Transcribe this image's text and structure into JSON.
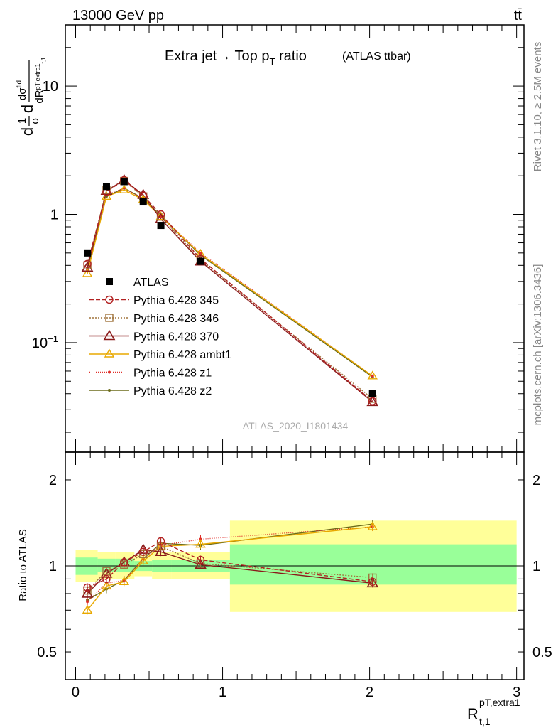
{
  "header": {
    "left": "13000 GeV pp",
    "right": "tt̄"
  },
  "side_labels": {
    "rivet": "Rivet 3.1.10, ≥ 2.5M events",
    "mcplots": "mcplots.cern.ch [arXiv:1306.3436]"
  },
  "chart_data": [
    {
      "type": "line",
      "title_main": "Extra jet→ Top p",
      "title_sub": "T",
      "title_tail": " ratio",
      "title_note": "(ATLAS ttbar)",
      "watermark": "ATLAS_2020_I1801434",
      "ylabel": "d(1/σ)dσ/dR",
      "yscale": "log",
      "ylim": [
        0.014,
        30
      ],
      "xlim": [
        -0.07,
        3.05
      ],
      "yticks": [
        {
          "v": 10,
          "label": "10"
        },
        {
          "v": 1,
          "label": "1"
        },
        {
          "v": 0.1,
          "label": "10",
          "sup": "−1"
        }
      ],
      "x": [
        0.08,
        0.21,
        0.33,
        0.46,
        0.58,
        0.85,
        2.02
      ],
      "series": [
        {
          "name": "ATLAS",
          "color": "#000000",
          "dash": "",
          "marker": "square",
          "values": [
            0.5,
            1.65,
            1.8,
            1.25,
            0.82,
            0.43,
            0.04
          ]
        },
        {
          "name": "Pythia 6.428 345",
          "color": "#b22222",
          "dash": "6,3",
          "marker": "circle",
          "values": [
            0.41,
            1.5,
            1.85,
            1.4,
            1.0,
            0.45,
            0.035
          ]
        },
        {
          "name": "Pythia 6.428 346",
          "color": "#a0733c",
          "dash": "2,2",
          "marker": "opensquare",
          "values": [
            0.4,
            1.55,
            1.82,
            1.38,
            0.96,
            0.44,
            0.0365
          ]
        },
        {
          "name": "Pythia 6.428 370",
          "color": "#8b1a1a",
          "dash": "",
          "marker": "triangle",
          "values": [
            0.385,
            1.53,
            1.85,
            1.42,
            0.92,
            0.43,
            0.0345
          ]
        },
        {
          "name": "Pythia 6.428 ambt1",
          "color": "#e8a800",
          "dash": "",
          "marker": "opentriangle",
          "values": [
            0.345,
            1.38,
            1.55,
            1.3,
            0.96,
            0.49,
            0.055
          ]
        },
        {
          "name": "Pythia 6.428 z1",
          "color": "#e0302a",
          "dash": "1,2",
          "marker": "dot",
          "values": [
            0.37,
            1.42,
            1.6,
            1.32,
            0.97,
            0.5,
            0.055
          ]
        },
        {
          "name": "Pythia 6.428 z2",
          "color": "#6b6b1a",
          "dash": "",
          "marker": "dot",
          "values": [
            0.375,
            1.38,
            1.6,
            1.33,
            0.98,
            0.48,
            0.054
          ]
        }
      ]
    },
    {
      "type": "line",
      "ylabel": "Ratio to ATLAS",
      "yscale": "log",
      "ylim": [
        0.4,
        2.5
      ],
      "xlim": [
        -0.07,
        3.05
      ],
      "yticks": [
        {
          "v": 2,
          "label": "2"
        },
        {
          "v": 1,
          "label": "1"
        },
        {
          "v": 0.5,
          "label": "0.5"
        }
      ],
      "xticks": [
        {
          "v": 0,
          "label": "0"
        },
        {
          "v": 1,
          "label": "1"
        },
        {
          "v": 2,
          "label": "2"
        },
        {
          "v": 3,
          "label": "3"
        }
      ],
      "xlabel": "R",
      "xlabel_sup": "pT,extra1",
      "xlabel_sub": "t,1",
      "bands": [
        {
          "x0": 0.0,
          "x1": 0.15,
          "yellow": [
            0.88,
            1.14
          ],
          "green": [
            0.93,
            1.07
          ]
        },
        {
          "x0": 0.15,
          "x1": 0.27,
          "yellow": [
            0.9,
            1.12
          ],
          "green": [
            0.95,
            1.06
          ]
        },
        {
          "x0": 0.27,
          "x1": 0.4,
          "yellow": [
            0.9,
            1.12
          ],
          "green": [
            0.95,
            1.06
          ]
        },
        {
          "x0": 0.4,
          "x1": 0.52,
          "yellow": [
            0.92,
            1.09
          ],
          "green": [
            0.96,
            1.04
          ]
        },
        {
          "x0": 0.52,
          "x1": 0.65,
          "yellow": [
            0.9,
            1.12
          ],
          "green": [
            0.95,
            1.05
          ]
        },
        {
          "x0": 0.65,
          "x1": 1.05,
          "yellow": [
            0.9,
            1.12
          ],
          "green": [
            0.95,
            1.05
          ]
        },
        {
          "x0": 1.05,
          "x1": 3.0,
          "yellow": [
            0.69,
            1.44
          ],
          "green": [
            0.86,
            1.19
          ]
        }
      ],
      "x": [
        0.08,
        0.21,
        0.33,
        0.46,
        0.58,
        0.85,
        2.02
      ],
      "series": [
        {
          "name": "Pythia 6.428 345",
          "color": "#b22222",
          "dash": "6,3",
          "marker": "circle",
          "values": [
            0.84,
            0.9,
            1.03,
            1.12,
            1.22,
            1.05,
            0.88
          ]
        },
        {
          "name": "Pythia 6.428 346",
          "color": "#a0733c",
          "dash": "2,2",
          "marker": "opensquare",
          "values": [
            0.82,
            0.96,
            1.01,
            1.1,
            1.17,
            1.02,
            0.91
          ]
        },
        {
          "name": "Pythia 6.428 370",
          "color": "#8b1a1a",
          "dash": "",
          "marker": "triangle",
          "values": [
            0.8,
            0.94,
            1.03,
            1.14,
            1.12,
            1.01,
            0.87
          ]
        },
        {
          "name": "Pythia 6.428 ambt1",
          "color": "#e8a800",
          "dash": "",
          "marker": "opentriangle",
          "values": [
            0.7,
            0.85,
            0.88,
            1.04,
            1.17,
            1.19,
            1.37
          ]
        },
        {
          "name": "Pythia 6.428 z1",
          "color": "#e0302a",
          "dash": "1,2",
          "marker": "dot",
          "values": [
            0.75,
            0.87,
            0.89,
            1.06,
            1.18,
            1.24,
            1.37
          ]
        },
        {
          "name": "Pythia 6.428 z2",
          "color": "#6b6b1a",
          "dash": "",
          "marker": "dot",
          "values": [
            0.76,
            0.83,
            0.89,
            1.06,
            1.2,
            1.18,
            1.4
          ]
        }
      ]
    }
  ]
}
